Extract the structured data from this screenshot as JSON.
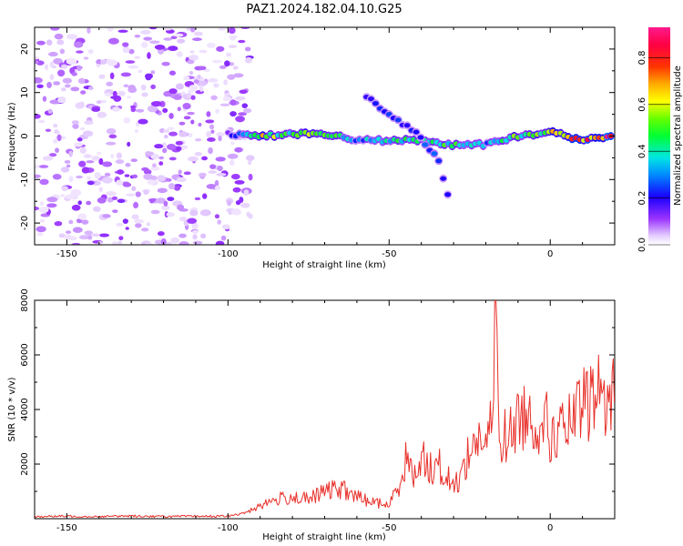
{
  "title": "PAZ1.2024.182.04.10.G25",
  "colors": {
    "snr_line": "#e8302a",
    "axes": "#000000"
  },
  "chart_data": [
    {
      "type": "heatmap",
      "name": "spectrogram",
      "xlabel": "Height of straight line (km)",
      "ylabel": "Frequency (Hz)",
      "xlim": [
        -160,
        20
      ],
      "ylim": [
        -25,
        25
      ],
      "xticks": [
        -150,
        -100,
        -50,
        0
      ],
      "yticks": [
        -20,
        -10,
        0,
        10,
        20
      ],
      "colorbar": {
        "label": "Normalized spectral amplitude",
        "range": [
          0,
          0.93
        ],
        "ticks": [
          "0.0",
          "0.2",
          "0.4",
          "0.6",
          "0.8"
        ],
        "colormap": "hsv-like (white-violet-blue-cyan-green-yellow-orange-red-magenta)"
      },
      "features": [
        {
          "description": "noise speckle",
          "x_range": [
            -160,
            -93
          ],
          "y_range": [
            -25,
            25
          ],
          "amplitude": 0.1
        },
        {
          "description": "main carrier",
          "x": [
            -100,
            -90,
            -80,
            -70,
            -60,
            -50,
            -40,
            -30,
            -20,
            -10,
            0,
            10,
            20
          ],
          "y": [
            0.5,
            0,
            0.5,
            0.5,
            -1,
            -1,
            -1,
            -2,
            -2,
            0,
            1,
            -1,
            0
          ],
          "amplitude": [
            0.15,
            0.6,
            0.45,
            0.55,
            0.3,
            0.4,
            0.4,
            0.45,
            0.3,
            0.5,
            0.6,
            0.75,
            0.85
          ]
        },
        {
          "description": "descending branch",
          "x": [
            -57,
            -50,
            -42,
            -35,
            -31
          ],
          "y": [
            9,
            5,
            1,
            -5,
            -16
          ],
          "amplitude": 0.25
        }
      ]
    },
    {
      "type": "line",
      "name": "snr",
      "xlabel": "Height of straight line (km)",
      "ylabel": "SNR (10 * v/v)",
      "xlim": [
        -160,
        20
      ],
      "ylim": [
        0,
        8000
      ],
      "xticks": [
        -150,
        -100,
        -50,
        0
      ],
      "yticks": [
        2000,
        4000,
        6000,
        8000
      ],
      "x": [
        -160,
        -150,
        -140,
        -130,
        -120,
        -110,
        -100,
        -95,
        -90,
        -85,
        -80,
        -75,
        -70,
        -65,
        -60,
        -55,
        -50,
        -47,
        -45,
        -42,
        -40,
        -38,
        -35,
        -32,
        -30,
        -28,
        -25,
        -22,
        -20,
        -18,
        -17,
        -16,
        -15,
        -12,
        -10,
        -8,
        -5,
        -2,
        0,
        2,
        5,
        8,
        10,
        12,
        15,
        18,
        20
      ],
      "y": [
        80,
        90,
        80,
        100,
        80,
        90,
        90,
        200,
        500,
        700,
        800,
        700,
        1000,
        1100,
        800,
        600,
        500,
        1200,
        2200,
        1500,
        2500,
        1800,
        2000,
        1500,
        1200,
        1500,
        2500,
        3000,
        2600,
        3500,
        8000,
        3300,
        3000,
        3100,
        3600,
        3900,
        3400,
        3900,
        2900,
        3200,
        3300,
        3700,
        4100,
        4300,
        4600,
        4400,
        4500
      ]
    }
  ]
}
